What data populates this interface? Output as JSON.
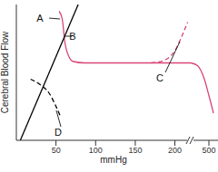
{
  "chart_data": [
    {
      "type": "line",
      "y_label": "Cerebral Blood Flow",
      "x_label": "mmHg",
      "xlim": [
        0,
        220
      ],
      "xticks": [
        50,
        100,
        150,
        200
      ],
      "ylim": [
        0,
        100
      ],
      "tick_labels": "x",
      "series": [
        {
          "name": "A",
          "color": "#d9447a",
          "line_style": "solid",
          "x": [
            54,
            58,
            61,
            66,
            72,
            86,
            153,
            220
          ],
          "values": [
            95,
            89,
            73,
            62,
            58,
            57,
            57,
            57
          ]
        },
        {
          "name": "B",
          "color": "#000000",
          "line_style": "solid",
          "x": [
            5,
            78
          ],
          "values": [
            0,
            100
          ]
        },
        {
          "name": "C",
          "color": "#d9447a",
          "line_style": "dashed",
          "x": [
            170,
            187,
            201,
            209,
            216
          ],
          "values": [
            57,
            59,
            67,
            77,
            87
          ]
        },
        {
          "name": "D",
          "color": "#000000",
          "line_style": "dashed",
          "x": [
            18,
            30,
            41,
            50,
            56
          ],
          "values": [
            45,
            41,
            35,
            25,
            17
          ]
        }
      ]
    },
    {
      "type": "line",
      "xlim": [
        460,
        520
      ],
      "xticks": [
        500
      ],
      "ylim": [
        0,
        100
      ],
      "tick_labels": "x",
      "series": [
        {
          "color": "#d9447a",
          "line_style": "solid",
          "x": [
            460,
            475,
            490,
            500,
            510
          ],
          "values": [
            57,
            55,
            45,
            33,
            20
          ]
        }
      ]
    }
  ]
}
